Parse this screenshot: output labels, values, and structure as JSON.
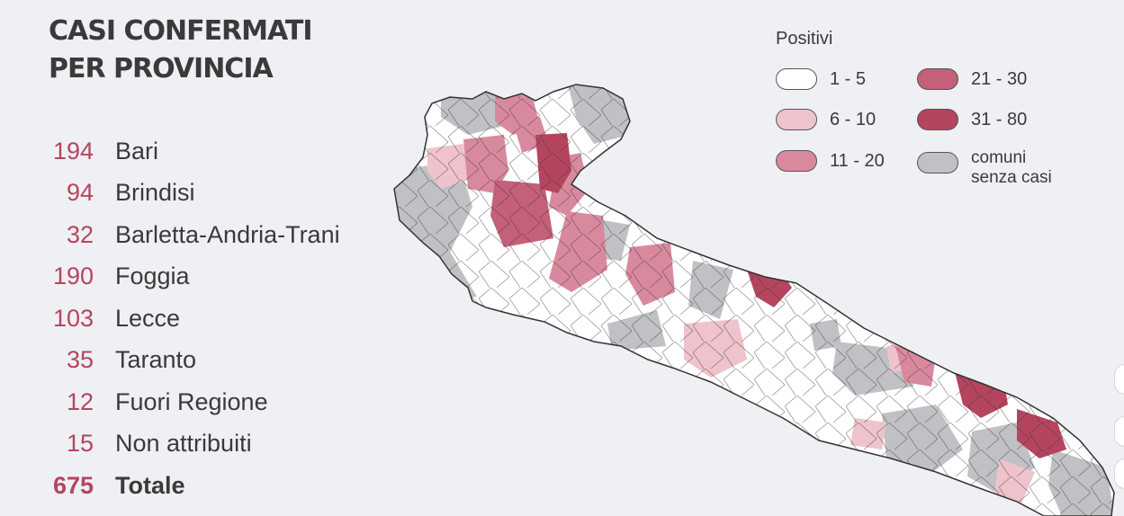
{
  "title": {
    "line1": "CASI CONFERMATI",
    "line2": "PER PROVINCIA"
  },
  "provinces": [
    {
      "count": "194",
      "name": "Bari"
    },
    {
      "count": "94",
      "name": "Brindisi"
    },
    {
      "count": "32",
      "name": "Barletta-Andria-Trani"
    },
    {
      "count": "190",
      "name": "Foggia"
    },
    {
      "count": "103",
      "name": "Lecce"
    },
    {
      "count": "35",
      "name": "Taranto"
    },
    {
      "count": "12",
      "name": "Fuori Regione"
    },
    {
      "count": "15",
      "name": "Non attribuiti"
    }
  ],
  "total": {
    "count": "675",
    "name": "Totale"
  },
  "legend": {
    "title": "Positivi",
    "items": [
      {
        "label": "1 - 5",
        "color": "#ffffff"
      },
      {
        "label": "6 - 10",
        "color": "#efc3cc"
      },
      {
        "label": "11 - 20",
        "color": "#d9899e"
      },
      {
        "label": "21 - 30",
        "color": "#c46079"
      },
      {
        "label": "31 - 80",
        "color": "#b5455f"
      },
      {
        "label": "comuni",
        "label2": "senza casi",
        "color": "#bfc1c4"
      }
    ]
  },
  "colors": {
    "accent": "#b5455f",
    "text": "#3a3a3a",
    "background": "#eff0f3",
    "no_cases": "#bfc1c4",
    "border": "#333333"
  }
}
